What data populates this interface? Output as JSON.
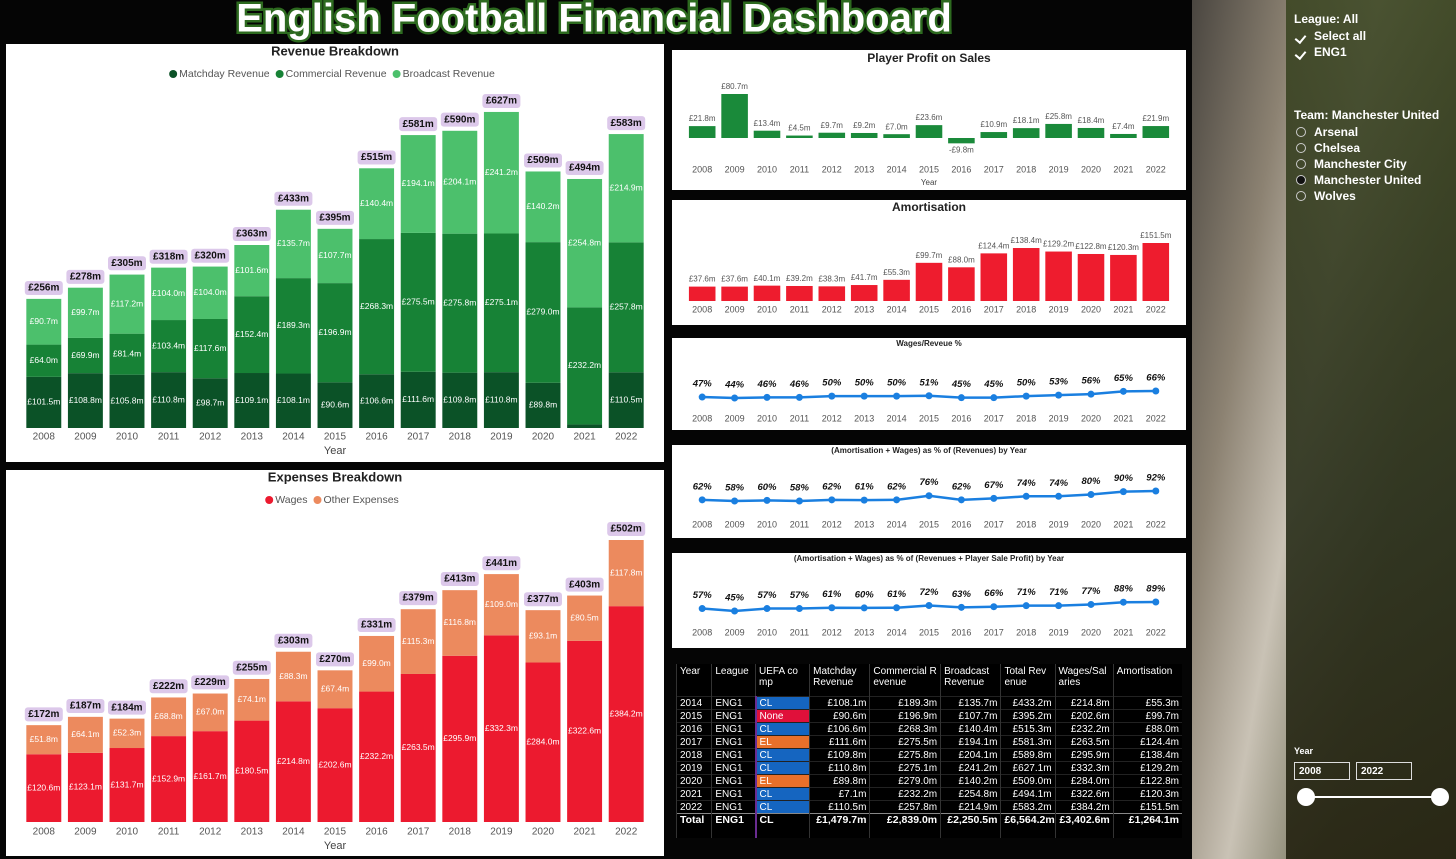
{
  "title": "English Football Financial Dashboard",
  "chart_data": [
    {
      "type": "stacked_bar",
      "title": "Revenue Breakdown",
      "x_label": "Year",
      "legend": "top",
      "categories": [
        2008,
        2009,
        2010,
        2011,
        2012,
        2013,
        2014,
        2015,
        2016,
        2017,
        2018,
        2019,
        2020,
        2021,
        2022
      ],
      "series": [
        {
          "name": "Matchday Revenue",
          "color": "#0b5227",
          "values": [
            101.5,
            108.8,
            105.8,
            110.8,
            98.7,
            109.1,
            108.1,
            90.6,
            106.6,
            111.6,
            109.8,
            110.8,
            89.8,
            7.1,
            110.5
          ],
          "value_labels": [
            "£101.5m",
            "£108.8m",
            "£105.8m",
            "£110.8m",
            "£98.7m",
            "£109.1m",
            "£108.1m",
            "£90.6m",
            "£106.6m",
            "£111.6m",
            "£109.8m",
            "£110.8m",
            "£89.8m",
            null,
            "£110.5m"
          ]
        },
        {
          "name": "Commercial Revenue",
          "color": "#178236",
          "values": [
            64.0,
            69.9,
            81.4,
            103.4,
            117.6,
            152.4,
            189.3,
            196.9,
            268.3,
            275.5,
            275.8,
            275.1,
            279.0,
            232.2,
            257.8
          ],
          "value_labels": [
            "£64.0m",
            "£69.9m",
            "£81.4m",
            "£103.4m",
            "£117.6m",
            "£152.4m",
            "£189.3m",
            "£196.9m",
            "£268.3m",
            "£275.5m",
            "£275.8m",
            "£275.1m",
            "£279.0m",
            "£232.2m",
            "£257.8m"
          ]
        },
        {
          "name": "Broadcast Revenue",
          "color": "#4cc06c",
          "values": [
            90.7,
            99.7,
            117.2,
            104.0,
            104.0,
            101.6,
            135.7,
            107.7,
            140.4,
            194.1,
            204.1,
            241.2,
            140.2,
            254.8,
            214.9
          ],
          "value_labels": [
            "£90.7m",
            "£99.7m",
            "£117.2m",
            "£104.0m",
            "£104.0m",
            "£101.6m",
            "£135.7m",
            "£107.7m",
            "£140.4m",
            "£194.1m",
            "£204.1m",
            "£241.2m",
            "£140.2m",
            "£254.8m",
            "£214.9m"
          ]
        }
      ],
      "totals": {
        "values": [
          256,
          278,
          305,
          318,
          320,
          363,
          433,
          395,
          515,
          581,
          590,
          627,
          509,
          494,
          583
        ],
        "value_labels": [
          "£256m",
          "£278m",
          "£305m",
          "£318m",
          "£320m",
          "£363m",
          "£433m",
          "£395m",
          "£515m",
          "£581m",
          "£590m",
          "£627m",
          "£509m",
          "£494m",
          "£583m"
        ]
      }
    },
    {
      "type": "stacked_bar",
      "title": "Expenses Breakdown",
      "x_label": "Year",
      "legend": "top",
      "categories": [
        2008,
        2009,
        2010,
        2011,
        2012,
        2013,
        2014,
        2015,
        2016,
        2017,
        2018,
        2019,
        2020,
        2021,
        2022
      ],
      "series": [
        {
          "name": "Wages",
          "color": "#ec1a2f",
          "values": [
            120.6,
            123.1,
            131.7,
            152.9,
            161.7,
            180.5,
            214.8,
            202.6,
            232.2,
            263.5,
            295.9,
            332.3,
            284.0,
            322.6,
            384.2
          ],
          "value_labels": [
            "£120.6m",
            "£123.1m",
            "£131.7m",
            "£152.9m",
            "£161.7m",
            "£180.5m",
            "£214.8m",
            "£202.6m",
            "£232.2m",
            "£263.5m",
            "£295.9m",
            "£332.3m",
            "£284.0m",
            "£322.6m",
            "£384.2m"
          ]
        },
        {
          "name": "Other Expenses",
          "color": "#ec8a5e",
          "values": [
            51.8,
            64.1,
            52.3,
            68.8,
            67.0,
            74.1,
            88.3,
            67.4,
            99.0,
            115.3,
            116.8,
            109.0,
            93.1,
            80.5,
            117.8
          ],
          "value_labels": [
            "£51.8m",
            "£64.1m",
            "£52.3m",
            "£68.8m",
            "£67.0m",
            "£74.1m",
            "£88.3m",
            "£67.4m",
            "£99.0m",
            "£115.3m",
            "£116.8m",
            "£109.0m",
            "£93.1m",
            "£80.5m",
            "£117.8m"
          ]
        }
      ],
      "totals": {
        "values": [
          172,
          187,
          184,
          222,
          229,
          255,
          303,
          270,
          331,
          379,
          413,
          441,
          377,
          403,
          502
        ],
        "value_labels": [
          "£172m",
          "£187m",
          "£184m",
          "£222m",
          "£229m",
          "£255m",
          "£303m",
          "£270m",
          "£331m",
          "£379m",
          "£413m",
          "£441m",
          "£377m",
          "£403m",
          "£502m"
        ]
      }
    },
    {
      "type": "bar",
      "title": "Player Profit on Sales",
      "x_label": "Year",
      "color": "#1a8a3a",
      "categories": [
        2008,
        2009,
        2010,
        2011,
        2012,
        2013,
        2014,
        2015,
        2016,
        2017,
        2018,
        2019,
        2020,
        2021,
        2022
      ],
      "values": [
        21.8,
        80.7,
        13.4,
        4.5,
        9.7,
        9.2,
        7.0,
        23.6,
        -9.8,
        10.9,
        18.1,
        25.8,
        18.4,
        7.4,
        21.9
      ],
      "value_labels": [
        "£21.8m",
        "£80.7m",
        "£13.4m",
        "£4.5m",
        "£9.7m",
        "£9.2m",
        "£7.0m",
        "£23.6m",
        "-£9.8m",
        "£10.9m",
        "£18.1m",
        "£25.8m",
        "£18.4m",
        "£7.4m",
        "£21.9m"
      ]
    },
    {
      "type": "bar",
      "title": "Amortisation",
      "color": "#ee1c2e",
      "categories": [
        2008,
        2009,
        2010,
        2011,
        2012,
        2013,
        2014,
        2015,
        2016,
        2017,
        2018,
        2019,
        2020,
        2021,
        2022
      ],
      "values": [
        37.6,
        37.6,
        40.1,
        39.2,
        38.3,
        41.7,
        55.3,
        99.7,
        88.0,
        124.4,
        138.4,
        129.2,
        122.8,
        120.3,
        151.5
      ],
      "value_labels": [
        "£37.6m",
        "£37.6m",
        "£40.1m",
        "£39.2m",
        "£38.3m",
        "£41.7m",
        "£55.3m",
        "£99.7m",
        "£88.0m",
        "£124.4m",
        "£138.4m",
        "£129.2m",
        "£122.8m",
        "£120.3m",
        "£151.5m"
      ]
    },
    {
      "type": "line",
      "title": "Wages/Reveue %",
      "color": "#1a7fe0",
      "categories": [
        2008,
        2009,
        2010,
        2011,
        2012,
        2013,
        2014,
        2015,
        2016,
        2017,
        2018,
        2019,
        2020,
        2021,
        2022
      ],
      "values": [
        47,
        44,
        46,
        46,
        50,
        50,
        50,
        51,
        45,
        45,
        50,
        53,
        56,
        65,
        66
      ],
      "value_labels": [
        "47%",
        "44%",
        "46%",
        "46%",
        "50%",
        "50%",
        "50%",
        "51%",
        "45%",
        "45%",
        "50%",
        "53%",
        "56%",
        "65%",
        "66%"
      ]
    },
    {
      "type": "line",
      "title": "(Amortisation + Wages) as % of (Revenues) by Year",
      "color": "#1a7fe0",
      "categories": [
        2008,
        2009,
        2010,
        2011,
        2012,
        2013,
        2014,
        2015,
        2016,
        2017,
        2018,
        2019,
        2020,
        2021,
        2022
      ],
      "values": [
        62,
        58,
        60,
        58,
        62,
        61,
        62,
        76,
        62,
        67,
        74,
        74,
        80,
        90,
        92
      ],
      "value_labels": [
        "62%",
        "58%",
        "60%",
        "58%",
        "62%",
        "61%",
        "62%",
        "76%",
        "62%",
        "67%",
        "74%",
        "74%",
        "80%",
        "90%",
        "92%"
      ]
    },
    {
      "type": "line",
      "title": "(Amortisation + Wages) as % of (Revenues + Player Sale Profit) by Year",
      "color": "#1a7fe0",
      "categories": [
        2008,
        2009,
        2010,
        2011,
        2012,
        2013,
        2014,
        2015,
        2016,
        2017,
        2018,
        2019,
        2020,
        2021,
        2022
      ],
      "values": [
        57,
        45,
        57,
        57,
        61,
        60,
        61,
        72,
        63,
        66,
        71,
        71,
        77,
        88,
        89
      ],
      "value_labels": [
        "57%",
        "45%",
        "57%",
        "57%",
        "61%",
        "60%",
        "61%",
        "72%",
        "63%",
        "66%",
        "71%",
        "71%",
        "77%",
        "88%",
        "89%"
      ]
    }
  ],
  "table": {
    "columns": [
      "Year",
      "League",
      "UEFA comp",
      "Matchday Revenue",
      "Commercial Revenue",
      "Broadcast Revenue",
      "Total Revenue",
      "Wages/Salaries",
      "Amortisation"
    ],
    "rows": [
      [
        2014,
        "ENG1",
        "CL",
        "£108.1m",
        "£189.3m",
        "£135.7m",
        "£433.2m",
        "£214.8m",
        "£55.3m"
      ],
      [
        2015,
        "ENG1",
        "None",
        "£90.6m",
        "£196.9m",
        "£107.7m",
        "£395.2m",
        "£202.6m",
        "£99.7m"
      ],
      [
        2016,
        "ENG1",
        "CL",
        "£106.6m",
        "£268.3m",
        "£140.4m",
        "£515.3m",
        "£232.2m",
        "£88.0m"
      ],
      [
        2017,
        "ENG1",
        "EL",
        "£111.6m",
        "£275.5m",
        "£194.1m",
        "£581.3m",
        "£263.5m",
        "£124.4m"
      ],
      [
        2018,
        "ENG1",
        "CL",
        "£109.8m",
        "£275.8m",
        "£204.1m",
        "£589.8m",
        "£295.9m",
        "£138.4m"
      ],
      [
        2019,
        "ENG1",
        "CL",
        "£110.8m",
        "£275.1m",
        "£241.2m",
        "£627.1m",
        "£332.3m",
        "£129.2m"
      ],
      [
        2020,
        "ENG1",
        "EL",
        "£89.8m",
        "£279.0m",
        "£140.2m",
        "£509.0m",
        "£284.0m",
        "£122.8m"
      ],
      [
        2021,
        "ENG1",
        "CL",
        "£7.1m",
        "£232.2m",
        "£254.8m",
        "£494.1m",
        "£322.6m",
        "£120.3m"
      ],
      [
        2022,
        "ENG1",
        "CL",
        "£110.5m",
        "£257.8m",
        "£214.9m",
        "£583.2m",
        "£384.2m",
        "£151.5m"
      ]
    ],
    "total": [
      "Total",
      "ENG1",
      "CL",
      "£1,479.7m",
      "£2,839.0m",
      "£2,250.5m",
      "£6,564.2m",
      "£3,402.6m",
      "£1,264.1m"
    ],
    "uefa_colors": {
      "CL": "#1565c0",
      "EL": "#e8702a",
      "None": "#e0103a"
    }
  },
  "slicers": {
    "league": {
      "title": "League: All",
      "options": [
        "Select all",
        "ENG1"
      ]
    },
    "team": {
      "title": "Team: Manchester United",
      "options": [
        "Arsenal",
        "Chelsea",
        "Manchester City",
        "Manchester United",
        "Wolves"
      ],
      "selected": "Manchester United"
    },
    "year": {
      "title": "Year",
      "from": 2008,
      "to": 2022
    }
  }
}
